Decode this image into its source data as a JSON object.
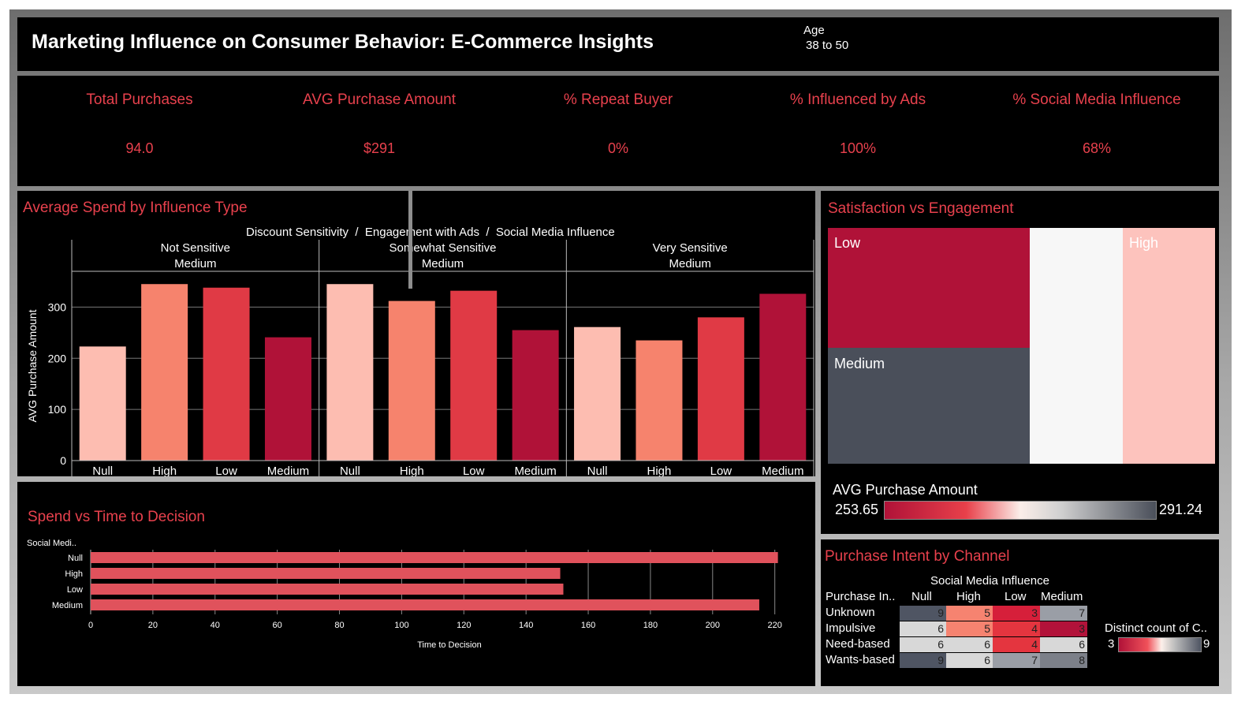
{
  "header": {
    "title": "Marketing Influence on Consumer Behavior: E-Commerce Insights",
    "filter_label": "Age",
    "filter_value": "38 to 50"
  },
  "kpis": [
    {
      "title": "Total Purchases",
      "value": "94.0"
    },
    {
      "title": "AVG Purchase Amount",
      "value": "$291"
    },
    {
      "title": "% Repeat Buyer",
      "value": "0%"
    },
    {
      "title": "% Influenced by Ads",
      "value": "100%"
    },
    {
      "title": "% Social Media Influence",
      "value": "68%"
    }
  ],
  "avg_spend": {
    "title": "Average Spend by Influence Type",
    "header": "Discount Sensitivity  /  Engagement with Ads  /  Social Media Influence"
  },
  "satisfaction": {
    "title": "Satisfaction vs Engagement",
    "legend_title": "AVG Purchase Amount",
    "legend_min": "253.65",
    "legend_max": "291.24",
    "cells": [
      {
        "label": "Low",
        "color": "#b01238"
      },
      {
        "label": "Medium",
        "color": "#4a4f5a"
      },
      {
        "label": "",
        "color": "#f7f7f7"
      },
      {
        "label": "High",
        "color": "#fdc3bd"
      }
    ]
  },
  "spend_time": {
    "title": "Spend vs Time to Decision"
  },
  "intent": {
    "title": "Purchase Intent by Channel",
    "col_header": "Social Media Influence",
    "row_header": "Purchase In..",
    "columns": [
      "Null",
      "High",
      "Low",
      "Medium"
    ],
    "rows": [
      {
        "label": "Unknown",
        "values": [
          "9",
          "5",
          "3",
          "7"
        ]
      },
      {
        "label": "Impulsive",
        "values": [
          "6",
          "5",
          "4",
          "3"
        ]
      },
      {
        "label": "Need-based",
        "values": [
          "6",
          "6",
          "4",
          "6"
        ]
      },
      {
        "label": "Wants-based",
        "values": [
          "9",
          "6",
          "7",
          "8"
        ]
      }
    ],
    "cell_colors": [
      [
        "#4f5563",
        "#f68370",
        "#d61f3a",
        "#9a9ea6"
      ],
      [
        "#d8d8d8",
        "#f68370",
        "#e4353f",
        "#b2123a"
      ],
      [
        "#d8d8d8",
        "#d8d8d8",
        "#e4353f",
        "#d8d8d8"
      ],
      [
        "#4f5563",
        "#d8d8d8",
        "#9a9ea6",
        "#7c8089"
      ]
    ],
    "legend_title": "Distinct count of C..",
    "legend_min": "3",
    "legend_max": "9"
  },
  "colors": {
    "null": "#fdbdb1",
    "high": "#f6836d",
    "low": "#e03a45",
    "medium": "#b01238",
    "hbar": "#e0525c",
    "accent": "#e8414d"
  },
  "chart_data": [
    {
      "type": "bar",
      "title": "Average Spend by Influence Type",
      "xlabel": "",
      "ylabel": "AVG Purchase Amount",
      "ylim": [
        0,
        370
      ],
      "yticks": [
        0,
        100,
        200,
        300
      ],
      "categories": [
        "Null",
        "High",
        "Low",
        "Medium"
      ],
      "panels": [
        {
          "label1": "Not Sensitive",
          "label2": "Medium",
          "values": [
            223,
            345,
            338,
            241
          ]
        },
        {
          "label1": "Somewhat Sensitive",
          "label2": "Medium",
          "values": [
            345,
            312,
            332,
            255
          ]
        },
        {
          "label1": "Very Sensitive",
          "label2": "Medium",
          "values": [
            261,
            235,
            280,
            326
          ]
        }
      ]
    },
    {
      "type": "bar",
      "orientation": "horizontal",
      "title": "Spend vs Time to Decision",
      "xlabel": "Time to Decision",
      "ylabel": "Social Medi..",
      "xlim": [
        0,
        230
      ],
      "xticks": [
        0,
        20,
        40,
        60,
        80,
        100,
        120,
        140,
        160,
        180,
        200,
        220
      ],
      "categories": [
        "Null",
        "High",
        "Low",
        "Medium"
      ],
      "values": [
        221,
        151,
        152,
        215
      ]
    }
  ]
}
